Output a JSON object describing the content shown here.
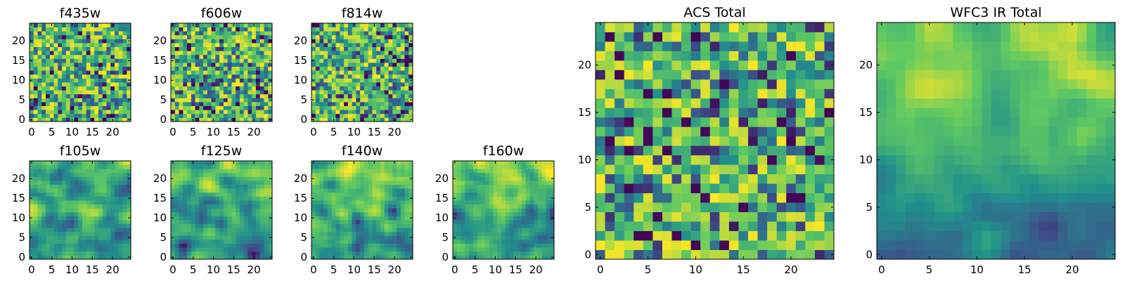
{
  "figure": {
    "colormap": "viridis",
    "colormap_stops": [
      "#440154",
      "#3b528b",
      "#21918c",
      "#5ec962",
      "#fde725"
    ],
    "value_range": [
      0,
      1
    ]
  },
  "chart_data": [
    {
      "type": "heatmap",
      "title": "f435w",
      "grid_size": 25,
      "xticks": [
        "0",
        "5",
        "10",
        "15",
        "20"
      ],
      "yticks": [
        "0",
        "5",
        "10",
        "15",
        "20"
      ],
      "xlim": [
        -0.5,
        24.5
      ],
      "ylim": [
        -0.5,
        24.5
      ],
      "texture": "pixel-noise"
    },
    {
      "type": "heatmap",
      "title": "f606w",
      "grid_size": 25,
      "xticks": [
        "0",
        "5",
        "10",
        "15",
        "20"
      ],
      "yticks": [
        "0",
        "5",
        "10",
        "15",
        "20"
      ],
      "xlim": [
        -0.5,
        24.5
      ],
      "ylim": [
        -0.5,
        24.5
      ],
      "texture": "pixel-noise"
    },
    {
      "type": "heatmap",
      "title": "f814w",
      "grid_size": 25,
      "xticks": [
        "0",
        "5",
        "10",
        "15",
        "20"
      ],
      "yticks": [
        "0",
        "5",
        "10",
        "15",
        "20"
      ],
      "xlim": [
        -0.5,
        24.5
      ],
      "ylim": [
        -0.5,
        24.5
      ],
      "texture": "pixel-noise"
    },
    {
      "type": "heatmap",
      "title": "f105w",
      "grid_size": 25,
      "xticks": [
        "0",
        "5",
        "10",
        "15",
        "20"
      ],
      "yticks": [
        "0",
        "5",
        "10",
        "15",
        "20"
      ],
      "xlim": [
        -0.5,
        24.5
      ],
      "ylim": [
        -0.5,
        24.5
      ],
      "texture": "smooth"
    },
    {
      "type": "heatmap",
      "title": "f125w",
      "grid_size": 25,
      "xticks": [
        "0",
        "5",
        "10",
        "15",
        "20"
      ],
      "yticks": [
        "0",
        "5",
        "10",
        "15",
        "20"
      ],
      "xlim": [
        -0.5,
        24.5
      ],
      "ylim": [
        -0.5,
        24.5
      ],
      "texture": "smooth"
    },
    {
      "type": "heatmap",
      "title": "f140w",
      "grid_size": 25,
      "xticks": [
        "0",
        "5",
        "10",
        "15",
        "20"
      ],
      "yticks": [
        "0",
        "5",
        "10",
        "15",
        "20"
      ],
      "xlim": [
        -0.5,
        24.5
      ],
      "ylim": [
        -0.5,
        24.5
      ],
      "texture": "smooth"
    },
    {
      "type": "heatmap",
      "title": "f160w",
      "grid_size": 25,
      "xticks": [
        "0",
        "5",
        "10",
        "15",
        "20"
      ],
      "yticks": [
        "0",
        "5",
        "10",
        "15",
        "20"
      ],
      "xlim": [
        -0.5,
        24.5
      ],
      "ylim": [
        -0.5,
        24.5
      ],
      "texture": "smooth"
    },
    {
      "type": "heatmap",
      "title": "ACS Total",
      "grid_size": 25,
      "xticks": [
        "0",
        "5",
        "10",
        "15",
        "20"
      ],
      "yticks": [
        "0",
        "5",
        "10",
        "15",
        "20"
      ],
      "xlim": [
        -0.5,
        24.5
      ],
      "ylim": [
        -0.5,
        24.5
      ],
      "texture": "pixel-noise"
    },
    {
      "type": "heatmap",
      "title": "WFC3 IR Total",
      "grid_size": 25,
      "xticks": [
        "0",
        "5",
        "10",
        "15",
        "20"
      ],
      "yticks": [
        "0",
        "5",
        "10",
        "15",
        "20"
      ],
      "xlim": [
        -0.5,
        24.5
      ],
      "ylim": [
        -0.5,
        24.5
      ],
      "texture": "smooth-gradient"
    }
  ]
}
